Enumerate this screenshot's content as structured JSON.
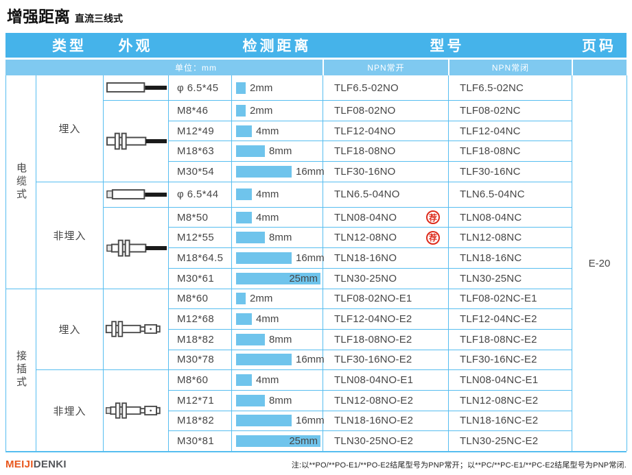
{
  "title": {
    "main": "增强距离",
    "sub": "直流三线式"
  },
  "header": {
    "type": "类型",
    "appearance": "外观",
    "distance": "检测距离",
    "model": "型号",
    "page": "页码",
    "unit": "单位：mm",
    "npn_no": "NPN常开",
    "npn_nc": "NPN常闭"
  },
  "page_code": "E-20",
  "badge_label": "荐",
  "colors": {
    "header_blue": "#45b3ea",
    "subheader_blue": "#7fc9f0",
    "line_blue": "#55bdf0",
    "bar_blue": "#6fc4ec",
    "badge_red": "#dd2b1c",
    "logo_orange": "#e8571d",
    "logo_gray": "#54565a"
  },
  "table": {
    "distance_scale_max_mm": 25,
    "sections": [
      {
        "type_label": "电缆式",
        "subsections": [
          {
            "mount_label": "埋入",
            "drawings": [
              {
                "style": "smooth-cable",
                "span": 1
              },
              {
                "style": "threaded-cable",
                "span": 4
              }
            ],
            "rows": [
              {
                "size": "φ 6.5*45",
                "distance_mm": 2,
                "distance_label": "2mm",
                "model_no": "TLF6.5-02NO",
                "model_nc": "TLF6.5-02NC",
                "recommended": false
              },
              {
                "size": "M8*46",
                "distance_mm": 2,
                "distance_label": "2mm",
                "model_no": "TLF08-02NO",
                "model_nc": "TLF08-02NC",
                "recommended": false
              },
              {
                "size": "M12*49",
                "distance_mm": 4,
                "distance_label": "4mm",
                "model_no": "TLF12-04NO",
                "model_nc": "TLF12-04NC",
                "recommended": false
              },
              {
                "size": "M18*63",
                "distance_mm": 8,
                "distance_label": "8mm",
                "model_no": "TLF18-08NO",
                "model_nc": "TLF18-08NC",
                "recommended": false
              },
              {
                "size": "M30*54",
                "distance_mm": 16,
                "distance_label": "16mm",
                "model_no": "TLF30-16NO",
                "model_nc": "TLF30-16NC",
                "recommended": false
              }
            ]
          },
          {
            "mount_label": "非埋入",
            "drawings": [
              {
                "style": "smooth-cable-tip",
                "span": 1
              },
              {
                "style": "threaded-cable-tip",
                "span": 4
              }
            ],
            "rows": [
              {
                "size": "φ 6.5*44",
                "distance_mm": 4,
                "distance_label": "4mm",
                "model_no": "TLN6.5-04NO",
                "model_nc": "TLN6.5-04NC",
                "recommended": false
              },
              {
                "size": "M8*50",
                "distance_mm": 4,
                "distance_label": "4mm",
                "model_no": "TLN08-04NO",
                "model_nc": "TLN08-04NC",
                "recommended": true
              },
              {
                "size": "M12*55",
                "distance_mm": 8,
                "distance_label": "8mm",
                "model_no": "TLN12-08NO",
                "model_nc": "TLN12-08NC",
                "recommended": true
              },
              {
                "size": "M18*64.5",
                "distance_mm": 16,
                "distance_label": "16mm",
                "model_no": "TLN18-16NO",
                "model_nc": "TLN18-16NC",
                "recommended": false
              },
              {
                "size": "M30*61",
                "distance_mm": 25,
                "distance_label": "25mm",
                "model_no": "TLN30-25NO",
                "model_nc": "TLN30-25NC",
                "recommended": false
              }
            ]
          }
        ]
      },
      {
        "type_label": "接插式",
        "subsections": [
          {
            "mount_label": "埋入",
            "drawings": [
              {
                "style": "threaded-connector",
                "span": 4
              }
            ],
            "rows": [
              {
                "size": "M8*60",
                "distance_mm": 2,
                "distance_label": "2mm",
                "model_no": "TLF08-02NO-E1",
                "model_nc": "TLF08-02NC-E1",
                "recommended": false
              },
              {
                "size": "M12*68",
                "distance_mm": 4,
                "distance_label": "4mm",
                "model_no": "TLF12-04NO-E2",
                "model_nc": "TLF12-04NC-E2",
                "recommended": false
              },
              {
                "size": "M18*82",
                "distance_mm": 8,
                "distance_label": "8mm",
                "model_no": "TLF18-08NO-E2",
                "model_nc": "TLF18-08NC-E2",
                "recommended": false
              },
              {
                "size": "M30*78",
                "distance_mm": 16,
                "distance_label": "16mm",
                "model_no": "TLF30-16NO-E2",
                "model_nc": "TLF30-16NC-E2",
                "recommended": false
              }
            ]
          },
          {
            "mount_label": "非埋入",
            "drawings": [
              {
                "style": "threaded-connector-tip",
                "span": 4
              }
            ],
            "rows": [
              {
                "size": "M8*60",
                "distance_mm": 4,
                "distance_label": "4mm",
                "model_no": "TLN08-04NO-E1",
                "model_nc": "TLN08-04NC-E1",
                "recommended": false
              },
              {
                "size": "M12*71",
                "distance_mm": 8,
                "distance_label": "8mm",
                "model_no": "TLN12-08NO-E2",
                "model_nc": "TLN12-08NC-E2",
                "recommended": false
              },
              {
                "size": "M18*82",
                "distance_mm": 16,
                "distance_label": "16mm",
                "model_no": "TLN18-16NO-E2",
                "model_nc": "TLN18-16NC-E2",
                "recommended": false
              },
              {
                "size": "M30*81",
                "distance_mm": 25,
                "distance_label": "25mm",
                "model_no": "TLN30-25NO-E2",
                "model_nc": "TLN30-25NC-E2",
                "recommended": false
              }
            ]
          }
        ]
      }
    ]
  },
  "footer": {
    "logo_meiji": "MEIJI",
    "logo_denki": "DENKI",
    "note": "注:以**PO/**PO-E1/**PO-E2结尾型号为PNP常开；以**PC/**PC-E1/**PC-E2结尾型号为PNP常闭."
  }
}
